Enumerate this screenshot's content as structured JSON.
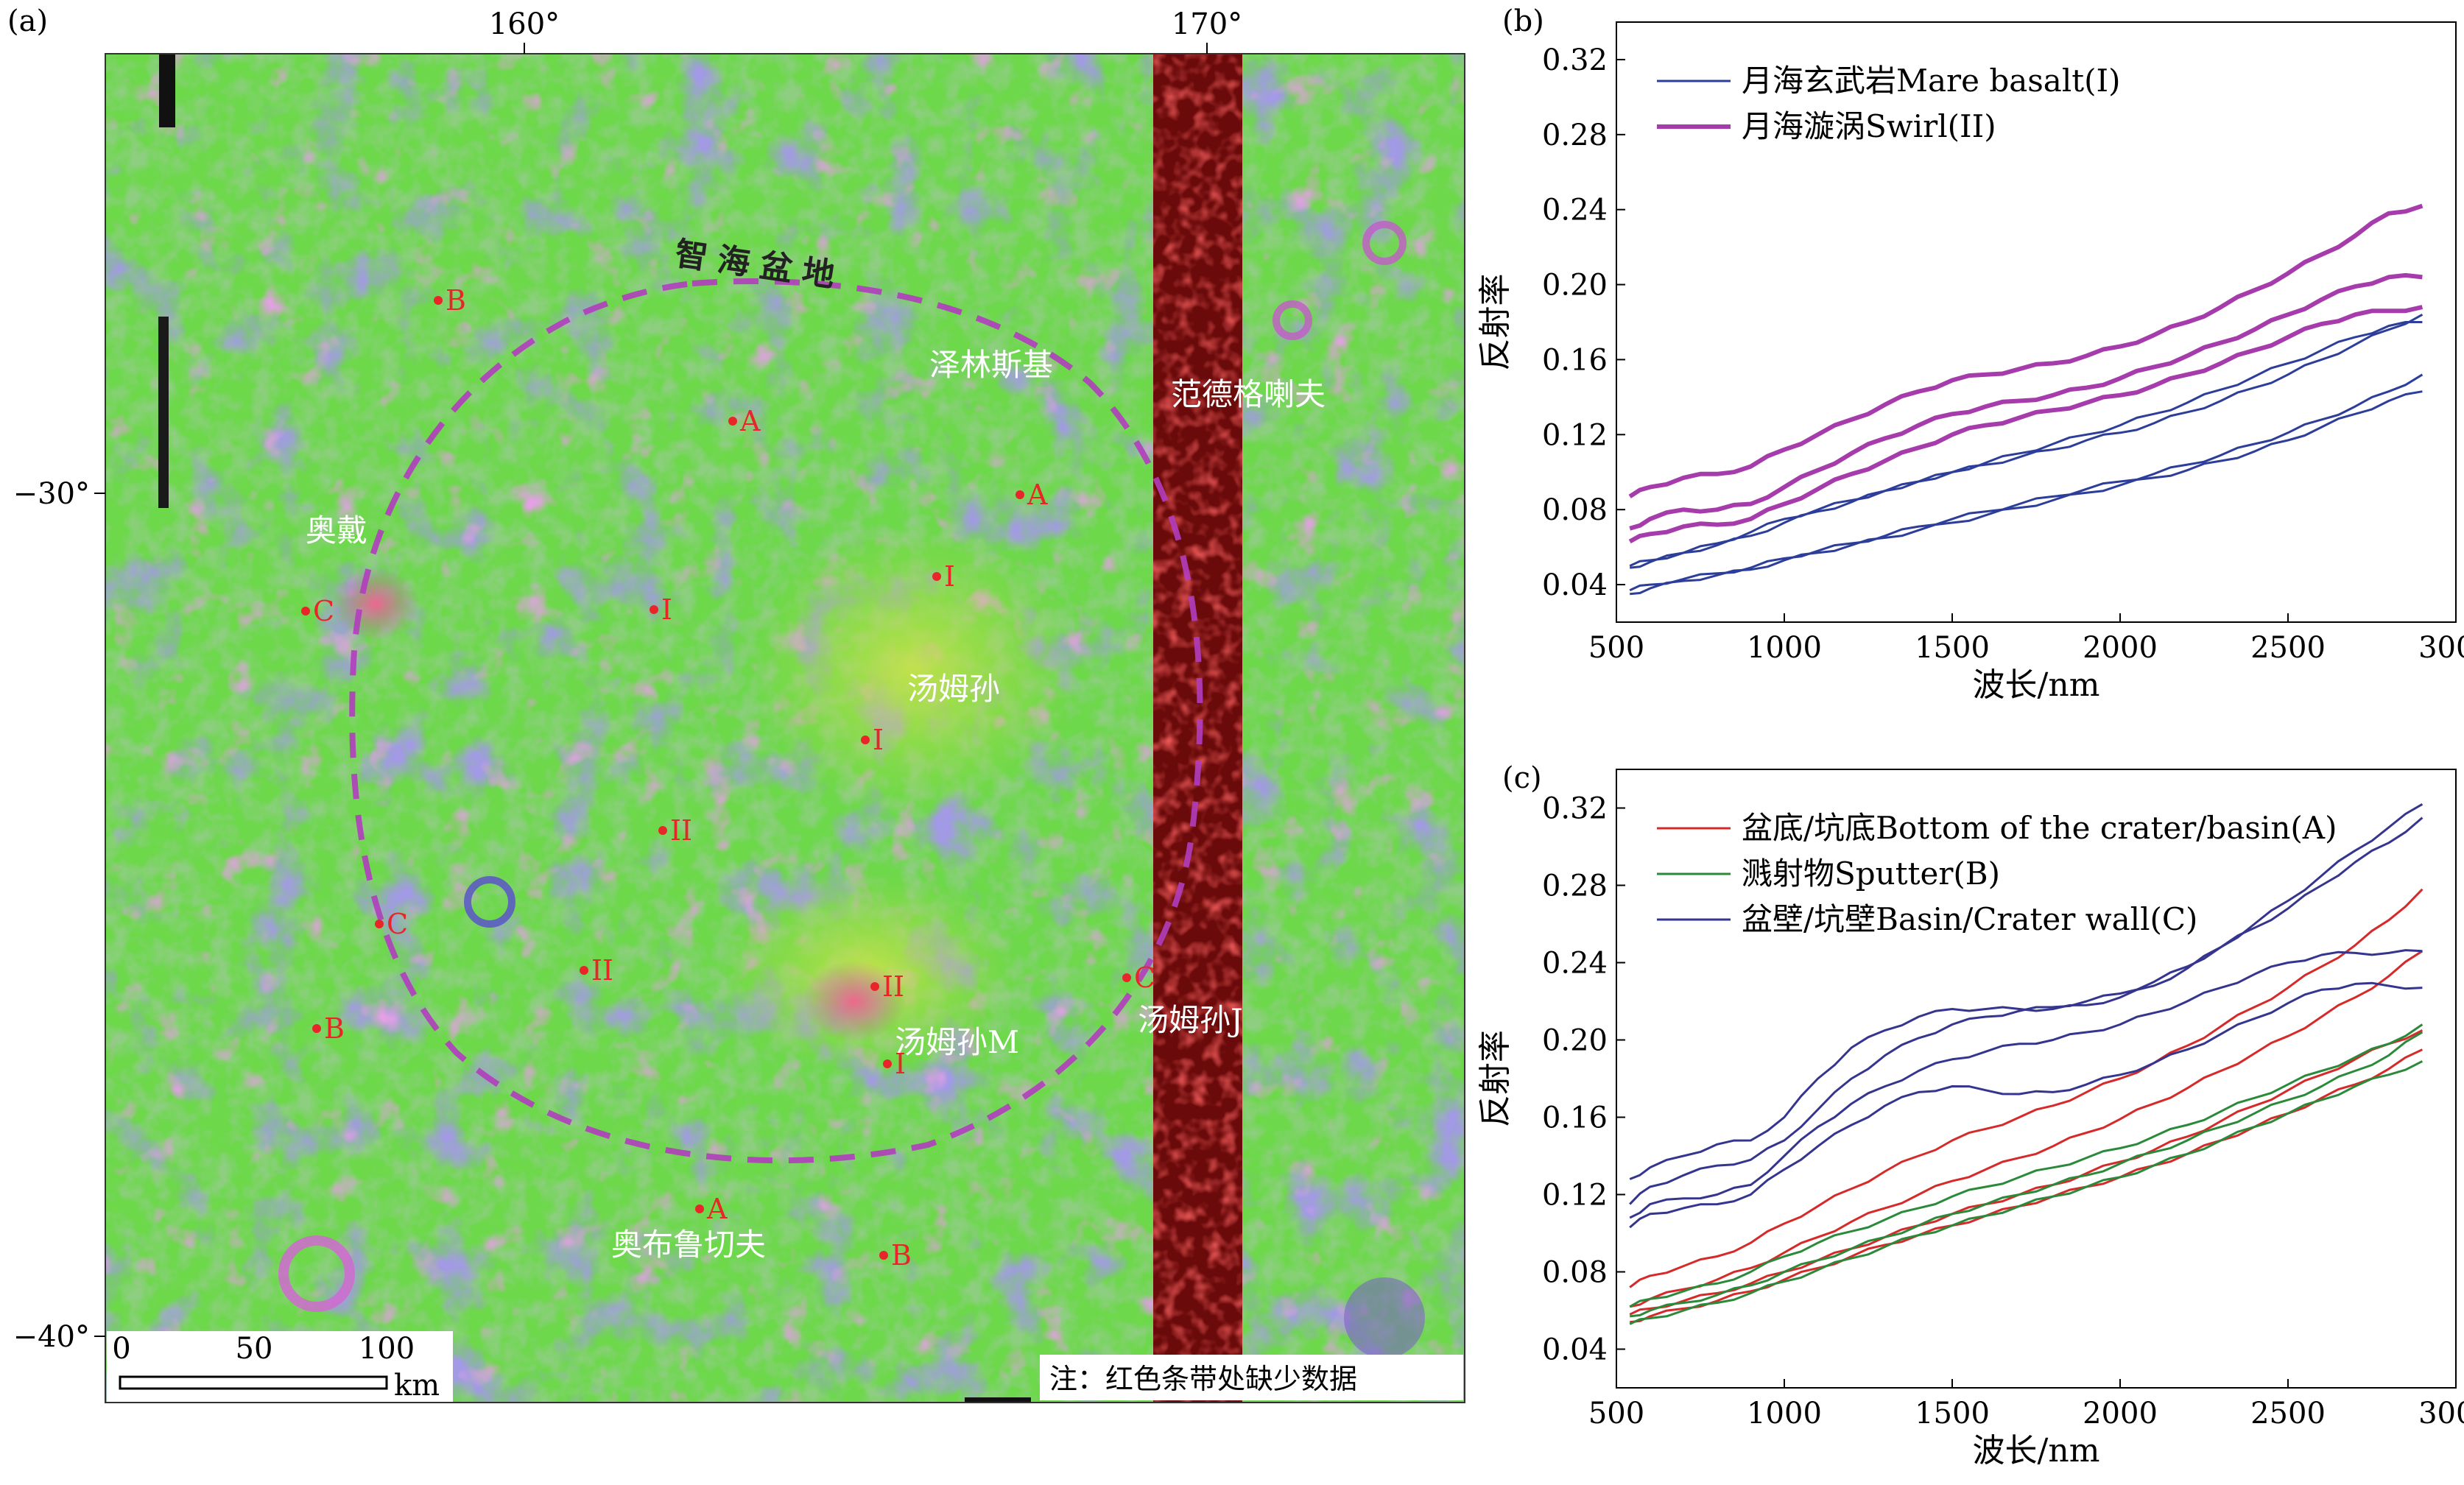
{
  "panels": {
    "a": "(a)",
    "b": "(b)",
    "c": "(c)"
  },
  "map": {
    "lon_ticks": [
      "160°",
      "170°"
    ],
    "lat_ticks": [
      "−30°",
      "−40°"
    ],
    "basin_label": "智海盆地",
    "place_names": [
      "泽林斯基",
      "范德格喇夫",
      "奥戴",
      "汤姆孙",
      "汤姆孙M",
      "汤姆孙J",
      "奥布鲁切夫"
    ],
    "sample_points": [
      "B",
      "A",
      "A",
      "I",
      "C",
      "I",
      "I",
      "II",
      "C",
      "II",
      "II",
      "C",
      "B",
      "I",
      "A",
      "B"
    ],
    "scale_bar": {
      "ticks": [
        "0",
        "50",
        "100"
      ],
      "unit": "km"
    },
    "note": "注：红色条带处缺少数据",
    "colors": {
      "background_green": "#6cd84a",
      "dark_green": "#47a845",
      "mare_blue": "#5a55c8",
      "swirl_magenta": "#c35bc7",
      "data_gap_red": "#6a0a0a",
      "basin_rim": "#b13dbe",
      "point_red": "#e8262a"
    }
  },
  "chart_data": [
    {
      "panel": "(b)",
      "type": "line",
      "xlabel": "波长/nm",
      "ylabel": "反射率",
      "xlim": [
        500,
        3000
      ],
      "ylim": [
        0.02,
        0.34
      ],
      "x_ticks": [
        500,
        1000,
        1500,
        2000,
        2500,
        3000
      ],
      "y_ticks": [
        0.04,
        0.08,
        0.12,
        0.16,
        0.2,
        0.24,
        0.28,
        0.32
      ],
      "legend": [
        {
          "label": "月海玄武岩Mare basalt(I)",
          "color": "#2c3e9a",
          "width": "thin"
        },
        {
          "label": "月海漩涡Swirl(II)",
          "color": "#a63cab",
          "width": "thick"
        }
      ],
      "legend_position": "top-left",
      "x": [
        540,
        600,
        700,
        800,
        900,
        1000,
        1100,
        1200,
        1300,
        1400,
        1500,
        1600,
        1700,
        1800,
        1900,
        2000,
        2100,
        2200,
        2300,
        2400,
        2500,
        2600,
        2700,
        2800,
        2900
      ],
      "series": [
        {
          "group": "I",
          "color": "#2c3e9a",
          "values": [
            0.05,
            0.053,
            0.057,
            0.062,
            0.068,
            0.075,
            0.08,
            0.085,
            0.09,
            0.095,
            0.1,
            0.104,
            0.108,
            0.112,
            0.117,
            0.121,
            0.126,
            0.132,
            0.138,
            0.145,
            0.152,
            0.16,
            0.168,
            0.176,
            0.184
          ]
        },
        {
          "group": "I",
          "color": "#2c3e9a",
          "values": [
            0.049,
            0.052,
            0.057,
            0.061,
            0.066,
            0.073,
            0.079,
            0.084,
            0.09,
            0.095,
            0.1,
            0.105,
            0.11,
            0.115,
            0.12,
            0.125,
            0.131,
            0.137,
            0.144,
            0.151,
            0.158,
            0.165,
            0.172,
            0.178,
            0.18
          ]
        },
        {
          "group": "I",
          "color": "#2c3e9a",
          "values": [
            0.037,
            0.04,
            0.043,
            0.046,
            0.049,
            0.054,
            0.058,
            0.062,
            0.066,
            0.071,
            0.075,
            0.079,
            0.083,
            0.087,
            0.091,
            0.095,
            0.099,
            0.104,
            0.109,
            0.115,
            0.121,
            0.128,
            0.135,
            0.143,
            0.152
          ]
        },
        {
          "group": "I",
          "color": "#2c3e9a",
          "values": [
            0.035,
            0.038,
            0.042,
            0.045,
            0.048,
            0.053,
            0.057,
            0.061,
            0.065,
            0.069,
            0.073,
            0.077,
            0.081,
            0.085,
            0.089,
            0.093,
            0.097,
            0.101,
            0.106,
            0.111,
            0.117,
            0.124,
            0.131,
            0.138,
            0.143
          ]
        },
        {
          "group": "II",
          "color": "#a63cab",
          "values": [
            0.087,
            0.092,
            0.097,
            0.099,
            0.103,
            0.112,
            0.12,
            0.128,
            0.136,
            0.143,
            0.149,
            0.152,
            0.155,
            0.158,
            0.162,
            0.167,
            0.173,
            0.18,
            0.188,
            0.197,
            0.206,
            0.216,
            0.226,
            0.238,
            0.242
          ]
        },
        {
          "group": "II",
          "color": "#a63cab",
          "values": [
            0.07,
            0.075,
            0.08,
            0.08,
            0.083,
            0.092,
            0.101,
            0.11,
            0.118,
            0.125,
            0.131,
            0.135,
            0.138,
            0.141,
            0.145,
            0.15,
            0.156,
            0.162,
            0.169,
            0.176,
            0.184,
            0.192,
            0.199,
            0.204,
            0.204
          ]
        },
        {
          "group": "II",
          "color": "#a63cab",
          "values": [
            0.063,
            0.067,
            0.071,
            0.072,
            0.075,
            0.083,
            0.091,
            0.099,
            0.106,
            0.113,
            0.12,
            0.125,
            0.129,
            0.133,
            0.137,
            0.141,
            0.146,
            0.152,
            0.158,
            0.165,
            0.172,
            0.179,
            0.184,
            0.186,
            0.188
          ]
        }
      ]
    },
    {
      "panel": "(c)",
      "type": "line",
      "xlabel": "波长/nm",
      "ylabel": "反射率",
      "xlim": [
        500,
        3000
      ],
      "ylim": [
        0.02,
        0.34
      ],
      "x_ticks": [
        500,
        1000,
        1500,
        2000,
        2500,
        3000
      ],
      "y_ticks": [
        0.04,
        0.08,
        0.12,
        0.16,
        0.2,
        0.24,
        0.28,
        0.32
      ],
      "legend": [
        {
          "label": "盆底/坑底Bottom of the crater/basin(A)",
          "color": "#d62a2a",
          "width": "thin"
        },
        {
          "label": "溅射物Sputter(B)",
          "color": "#2a8a3a",
          "width": "thin"
        },
        {
          "label": "盆壁/坑壁Basin/Crater wall(C)",
          "color": "#35358f",
          "width": "thin"
        }
      ],
      "legend_position": "top-left",
      "x": [
        540,
        600,
        700,
        800,
        900,
        1000,
        1100,
        1200,
        1300,
        1400,
        1500,
        1600,
        1700,
        1800,
        1900,
        2000,
        2100,
        2200,
        2300,
        2400,
        2500,
        2600,
        2700,
        2800,
        2900
      ],
      "series": [
        {
          "group": "A",
          "color": "#d62a2a",
          "values": [
            0.072,
            0.078,
            0.083,
            0.088,
            0.095,
            0.105,
            0.114,
            0.123,
            0.132,
            0.14,
            0.148,
            0.154,
            0.16,
            0.166,
            0.173,
            0.18,
            0.188,
            0.197,
            0.207,
            0.217,
            0.227,
            0.238,
            0.249,
            0.262,
            0.278
          ]
        },
        {
          "group": "A",
          "color": "#d62a2a",
          "values": [
            0.062,
            0.066,
            0.071,
            0.076,
            0.082,
            0.09,
            0.098,
            0.106,
            0.113,
            0.12,
            0.127,
            0.133,
            0.139,
            0.145,
            0.152,
            0.159,
            0.167,
            0.175,
            0.184,
            0.193,
            0.202,
            0.212,
            0.222,
            0.233,
            0.246
          ]
        },
        {
          "group": "A",
          "color": "#d62a2a",
          "values": [
            0.058,
            0.061,
            0.065,
            0.069,
            0.074,
            0.08,
            0.086,
            0.092,
            0.098,
            0.104,
            0.11,
            0.115,
            0.12,
            0.125,
            0.131,
            0.137,
            0.143,
            0.15,
            0.158,
            0.166,
            0.174,
            0.182,
            0.19,
            0.198,
            0.205
          ]
        },
        {
          "group": "A",
          "color": "#d62a2a",
          "values": [
            0.054,
            0.057,
            0.061,
            0.065,
            0.07,
            0.076,
            0.082,
            0.088,
            0.094,
            0.099,
            0.104,
            0.109,
            0.114,
            0.119,
            0.124,
            0.129,
            0.135,
            0.141,
            0.148,
            0.155,
            0.162,
            0.17,
            0.177,
            0.185,
            0.195
          ]
        },
        {
          "group": "B",
          "color": "#2a8a3a",
          "values": [
            0.062,
            0.066,
            0.07,
            0.074,
            0.08,
            0.088,
            0.095,
            0.101,
            0.107,
            0.113,
            0.119,
            0.124,
            0.129,
            0.134,
            0.139,
            0.144,
            0.15,
            0.156,
            0.163,
            0.17,
            0.177,
            0.184,
            0.191,
            0.198,
            0.208
          ]
        },
        {
          "group": "B",
          "color": "#2a8a3a",
          "values": [
            0.057,
            0.06,
            0.064,
            0.068,
            0.073,
            0.08,
            0.086,
            0.092,
            0.098,
            0.104,
            0.11,
            0.115,
            0.12,
            0.125,
            0.13,
            0.136,
            0.142,
            0.148,
            0.155,
            0.162,
            0.169,
            0.176,
            0.184,
            0.192,
            0.204
          ]
        },
        {
          "group": "B",
          "color": "#2a8a3a",
          "values": [
            0.053,
            0.056,
            0.06,
            0.064,
            0.069,
            0.075,
            0.081,
            0.087,
            0.093,
            0.099,
            0.104,
            0.109,
            0.114,
            0.119,
            0.124,
            0.129,
            0.135,
            0.141,
            0.148,
            0.155,
            0.162,
            0.169,
            0.176,
            0.182,
            0.189
          ]
        },
        {
          "group": "C",
          "color": "#35358f",
          "values": [
            0.128,
            0.134,
            0.14,
            0.146,
            0.148,
            0.16,
            0.18,
            0.196,
            0.205,
            0.212,
            0.216,
            0.216,
            0.216,
            0.216,
            0.218,
            0.222,
            0.228,
            0.237,
            0.248,
            0.26,
            0.272,
            0.285,
            0.298,
            0.31,
            0.322
          ]
        },
        {
          "group": "C",
          "color": "#35358f",
          "values": [
            0.115,
            0.124,
            0.13,
            0.135,
            0.138,
            0.148,
            0.164,
            0.18,
            0.192,
            0.201,
            0.208,
            0.212,
            0.215,
            0.217,
            0.22,
            0.224,
            0.23,
            0.238,
            0.248,
            0.258,
            0.268,
            0.28,
            0.292,
            0.302,
            0.315
          ]
        },
        {
          "group": "C",
          "color": "#35358f",
          "values": [
            0.108,
            0.115,
            0.118,
            0.12,
            0.125,
            0.14,
            0.155,
            0.167,
            0.176,
            0.184,
            0.19,
            0.194,
            0.198,
            0.2,
            0.204,
            0.208,
            0.214,
            0.22,
            0.227,
            0.234,
            0.24,
            0.244,
            0.245,
            0.245,
            0.246
          ]
        },
        {
          "group": "C",
          "color": "#35358f",
          "values": [
            0.103,
            0.11,
            0.113,
            0.115,
            0.12,
            0.133,
            0.145,
            0.156,
            0.166,
            0.173,
            0.176,
            0.174,
            0.172,
            0.173,
            0.177,
            0.182,
            0.188,
            0.195,
            0.203,
            0.211,
            0.219,
            0.226,
            0.229,
            0.228,
            0.227
          ]
        }
      ]
    }
  ]
}
